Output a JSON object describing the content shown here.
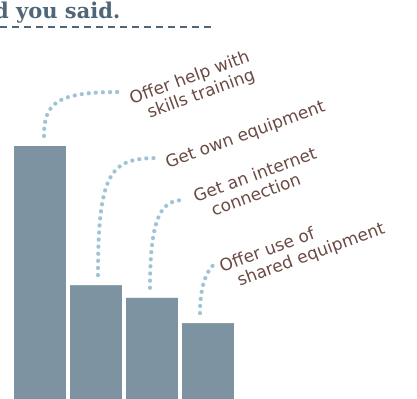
{
  "title_fragment": "d you said.",
  "colors": {
    "bar": "#7d93a1",
    "label": "#6b4a44",
    "dots": "#9ec3d4",
    "title": "#4e6677",
    "rule": "#4e6677"
  },
  "chart_data": {
    "type": "bar",
    "categories": [
      [
        "Offer help with",
        "skills training"
      ],
      [
        "Get own equipment"
      ],
      [
        "Get an internet",
        "connection"
      ],
      [
        "Offer use of",
        "shared equipment"
      ]
    ],
    "values": [
      100,
      45,
      40,
      30
    ],
    "ylim": [
      0,
      100
    ],
    "grid": false,
    "legend": "none"
  }
}
